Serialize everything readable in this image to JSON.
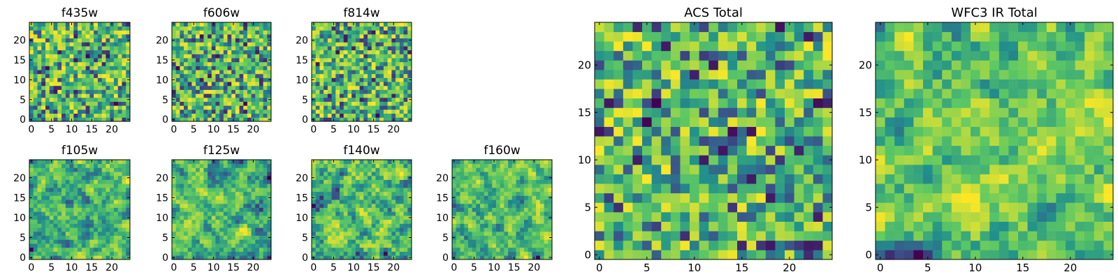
{
  "chart_data": [
    {
      "type": "heatmap",
      "title": "f435w",
      "xticks": [
        "0",
        "5",
        "10",
        "15",
        "20"
      ],
      "yticks": [
        "0",
        "5",
        "10",
        "15",
        "20"
      ],
      "size": 25,
      "seed": 11,
      "smooth": 0
    },
    {
      "type": "heatmap",
      "title": "f606w",
      "xticks": [
        "0",
        "5",
        "10",
        "15",
        "20"
      ],
      "yticks": [
        "0",
        "5",
        "10",
        "15",
        "20"
      ],
      "size": 25,
      "seed": 23,
      "smooth": 0
    },
    {
      "type": "heatmap",
      "title": "f814w",
      "xticks": [
        "0",
        "5",
        "10",
        "15",
        "20"
      ],
      "yticks": [
        "0",
        "5",
        "10",
        "15",
        "20"
      ],
      "size": 25,
      "seed": 37,
      "smooth": 0
    },
    {
      "type": "heatmap",
      "title": "f105w",
      "xticks": [
        "0",
        "5",
        "10",
        "15",
        "20"
      ],
      "yticks": [
        "0",
        "5",
        "10",
        "15",
        "20"
      ],
      "size": 25,
      "seed": 41,
      "smooth": 1
    },
    {
      "type": "heatmap",
      "title": "f125w",
      "xticks": [
        "0",
        "5",
        "10",
        "15",
        "20"
      ],
      "yticks": [
        "0",
        "5",
        "10",
        "15",
        "20"
      ],
      "size": 25,
      "seed": 53,
      "smooth": 1
    },
    {
      "type": "heatmap",
      "title": "f140w",
      "xticks": [
        "0",
        "5",
        "10",
        "15",
        "20"
      ],
      "yticks": [
        "0",
        "5",
        "10",
        "15",
        "20"
      ],
      "size": 25,
      "seed": 67,
      "smooth": 1
    },
    {
      "type": "heatmap",
      "title": "f160w",
      "xticks": [
        "0",
        "5",
        "10",
        "15",
        "20"
      ],
      "yticks": [
        "0",
        "5",
        "10",
        "15",
        "20"
      ],
      "size": 25,
      "seed": 79,
      "smooth": 1
    },
    {
      "type": "heatmap",
      "title": "ACS Total",
      "xticks": [
        "0",
        "5",
        "10",
        "15",
        "20"
      ],
      "yticks": [
        "0",
        "5",
        "10",
        "15",
        "20"
      ],
      "size": 25,
      "seed": 83,
      "smooth": 0
    },
    {
      "type": "heatmap",
      "title": "WFC3 IR Total",
      "xticks": [
        "0",
        "5",
        "10",
        "15",
        "20"
      ],
      "yticks": [
        "0",
        "5",
        "10",
        "15",
        "20"
      ],
      "size": 25,
      "seed": 97,
      "smooth": 1
    }
  ],
  "colormap": {
    "name": "viridis",
    "stops": [
      "#440154",
      "#3b528b",
      "#21918c",
      "#5ec962",
      "#fde725"
    ]
  }
}
